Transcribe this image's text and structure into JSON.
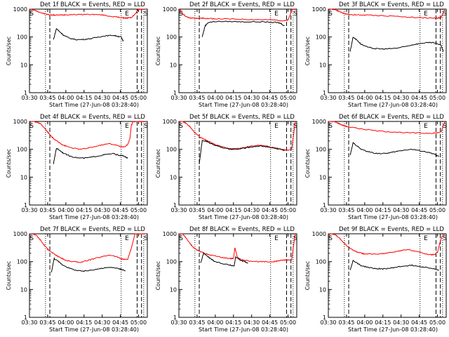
{
  "figure": {
    "xlabel": "Start Time (27-Jun-08 03:28:40)",
    "ylabel": "Counts/sec",
    "x_tick_labels": [
      "03:30",
      "03:45",
      "04:00",
      "04:15",
      "04:30",
      "04:45",
      "05:00"
    ],
    "y_tick_labels": [
      "1",
      "10",
      "100",
      "1000"
    ]
  },
  "colors": {
    "events": "#000000",
    "lld": "#ff0000",
    "axes": "#000000"
  },
  "chart_data": [
    {
      "type": "line",
      "title": "Det 1f BLACK = Events, RED = LLD",
      "xlabel": "Start Time (27-Jun-08 03:28:40)",
      "ylabel": "Counts/sec",
      "xlim": [
        3.5,
        5.12
      ],
      "ylim": [
        1,
        1000
      ],
      "yscale": "log",
      "markers": [
        "S",
        "E",
        "S"
      ],
      "series": [
        {
          "name": "LLD",
          "color": "#ff0000",
          "x": [
            3.5,
            3.52,
            3.55,
            3.6,
            3.65,
            3.7,
            3.75,
            3.8,
            3.85,
            3.9,
            3.95,
            4.0,
            4.1,
            4.2,
            4.3,
            4.4,
            4.5,
            4.6,
            4.7,
            4.75,
            4.8,
            4.85,
            4.9,
            4.95,
            5.0,
            5.03,
            5.06,
            5.1
          ],
          "values": [
            1000,
            1000,
            950,
            850,
            760,
            690,
            640,
            620,
            610,
            610,
            620,
            630,
            640,
            640,
            650,
            640,
            620,
            560,
            520,
            500,
            480,
            480,
            500,
            650,
            1000,
            1000,
            1000,
            1000
          ]
        },
        {
          "name": "Events",
          "color": "#000000",
          "x": [
            3.83,
            3.87,
            3.92,
            3.97,
            4.05,
            4.15,
            4.25,
            4.35,
            4.45,
            4.55,
            4.65,
            4.72,
            4.76,
            4.79
          ],
          "values": [
            80,
            200,
            150,
            115,
            90,
            80,
            82,
            88,
            100,
            110,
            115,
            105,
            100,
            70
          ]
        }
      ]
    },
    {
      "type": "line",
      "title": "Det 2f BLACK = Events, RED = LLD",
      "xlabel": "Start Time (27-Jun-08 03:28:40)",
      "ylabel": "Counts/sec",
      "xlim": [
        3.5,
        5.12
      ],
      "ylim": [
        1,
        1000
      ],
      "yscale": "log",
      "markers": [
        "S",
        "E",
        "S"
      ],
      "series": [
        {
          "name": "LLD",
          "color": "#ff0000",
          "x": [
            3.5,
            3.52,
            3.55,
            3.6,
            3.65,
            3.7,
            3.75,
            3.8,
            3.85,
            3.9,
            4.0,
            4.2,
            4.4,
            4.6,
            4.8,
            4.9,
            4.95,
            5.0,
            5.03,
            5.06,
            5.1
          ],
          "values": [
            1000,
            950,
            700,
            530,
            480,
            470,
            470,
            470,
            470,
            460,
            450,
            440,
            430,
            420,
            410,
            390,
            380,
            400,
            650,
            1000,
            1000
          ]
        },
        {
          "name": "Events",
          "color": "#000000",
          "x": [
            3.82,
            3.86,
            3.9,
            4.0,
            4.2,
            4.4,
            4.6,
            4.75,
            4.85,
            4.9,
            4.95
          ],
          "values": [
            100,
            250,
            330,
            360,
            360,
            350,
            350,
            340,
            330,
            310,
            250
          ]
        }
      ]
    },
    {
      "type": "line",
      "title": "Det 3f BLACK = Events, RED = LLD",
      "xlabel": "Start Time (27-Jun-08 03:28:40)",
      "ylabel": "Counts/sec",
      "xlim": [
        3.5,
        5.12
      ],
      "ylim": [
        1,
        1000
      ],
      "yscale": "log",
      "markers": [
        "S",
        "E",
        "S"
      ],
      "series": [
        {
          "name": "LLD",
          "color": "#ff0000",
          "x": [
            3.5,
            3.55,
            3.6,
            3.65,
            3.7,
            3.75,
            3.8,
            3.9,
            4.0,
            4.2,
            4.4,
            4.6,
            4.8,
            4.95,
            5.0,
            5.05,
            5.1
          ],
          "values": [
            1000,
            1000,
            950,
            830,
            720,
            660,
            640,
            620,
            610,
            590,
            560,
            520,
            490,
            470,
            480,
            500,
            1000
          ]
        },
        {
          "name": "Events",
          "color": "#000000",
          "x": [
            3.8,
            3.84,
            3.9,
            3.95,
            4.05,
            4.15,
            4.25,
            4.35,
            4.45,
            4.55,
            4.65,
            4.75,
            4.85,
            4.95,
            5.05,
            5.08
          ],
          "values": [
            30,
            100,
            75,
            55,
            42,
            38,
            37,
            38,
            40,
            45,
            52,
            58,
            62,
            62,
            50,
            30
          ]
        }
      ]
    },
    {
      "type": "line",
      "title": "Det 4f BLACK = Events, RED = LLD",
      "xlabel": "Start Time (27-Jun-08 03:28:40)",
      "ylabel": "Counts/sec",
      "xlim": [
        3.5,
        5.12
      ],
      "ylim": [
        1,
        1000
      ],
      "yscale": "log",
      "markers": [
        "S",
        "E",
        "S"
      ],
      "series": [
        {
          "name": "LLD",
          "color": "#ff0000",
          "x": [
            3.5,
            3.55,
            3.6,
            3.65,
            3.7,
            3.75,
            3.8,
            3.85,
            3.9,
            3.95,
            4.0,
            4.1,
            4.2,
            4.3,
            4.4,
            4.5,
            4.6,
            4.7,
            4.75,
            4.8,
            4.85,
            4.88,
            4.9,
            4.92,
            4.95,
            5.0,
            5.05,
            5.1
          ],
          "values": [
            1000,
            1000,
            950,
            820,
            600,
            420,
            290,
            220,
            180,
            150,
            130,
            110,
            100,
            110,
            125,
            145,
            160,
            140,
            125,
            120,
            150,
            240,
            700,
            1000,
            1000,
            1000,
            1000,
            1000
          ]
        },
        {
          "name": "Events",
          "color": "#000000",
          "x": [
            3.83,
            3.87,
            3.92,
            3.97,
            4.05,
            4.15,
            4.25,
            4.35,
            4.45,
            4.55,
            4.65,
            4.72,
            4.79,
            4.85
          ],
          "values": [
            30,
            110,
            90,
            72,
            58,
            50,
            48,
            52,
            58,
            65,
            70,
            62,
            58,
            48
          ]
        }
      ]
    },
    {
      "type": "line",
      "title": "Det 5f BLACK = Events, RED = LLD",
      "xlabel": "Start Time (27-Jun-08 03:28:40)",
      "ylabel": "Counts/sec",
      "xlim": [
        3.5,
        5.12
      ],
      "ylim": [
        1,
        1000
      ],
      "yscale": "log",
      "markers": [
        "S",
        "E",
        "S"
      ],
      "series": [
        {
          "name": "LLD",
          "color": "#ff0000",
          "x": [
            3.5,
            3.55,
            3.6,
            3.65,
            3.7,
            3.75,
            3.8,
            3.85,
            3.9,
            3.95,
            4.0,
            4.1,
            4.2,
            4.3,
            4.4,
            4.5,
            4.6,
            4.7,
            4.75,
            4.8,
            4.85,
            4.9,
            4.95,
            5.0,
            5.05,
            5.1
          ],
          "values": [
            1000,
            1000,
            850,
            650,
            450,
            330,
            260,
            230,
            200,
            170,
            150,
            120,
            105,
            105,
            115,
            130,
            140,
            130,
            120,
            115,
            108,
            100,
            95,
            95,
            100,
            1000
          ]
        },
        {
          "name": "Events",
          "color": "#000000",
          "x": [
            3.78,
            3.82,
            3.87,
            3.92,
            4.0,
            4.1,
            4.2,
            4.3,
            4.4,
            4.5,
            4.6,
            4.7,
            4.8,
            4.9,
            4.95
          ],
          "values": [
            30,
            200,
            200,
            170,
            140,
            115,
            100,
            100,
            110,
            122,
            132,
            125,
            112,
            100,
            92
          ]
        }
      ]
    },
    {
      "type": "line",
      "title": "Det 6f BLACK = Events, RED = LLD",
      "xlabel": "Start Time (27-Jun-08 03:28:40)",
      "ylabel": "Counts/sec",
      "xlim": [
        3.5,
        5.12
      ],
      "ylim": [
        1,
        1000
      ],
      "yscale": "log",
      "markers": [
        "S",
        "E",
        "S"
      ],
      "series": [
        {
          "name": "LLD",
          "color": "#ff0000",
          "x": [
            3.5,
            3.55,
            3.6,
            3.65,
            3.7,
            3.75,
            3.8,
            3.9,
            4.0,
            4.2,
            4.4,
            4.6,
            4.8,
            4.95,
            5.0,
            5.05,
            5.1
          ],
          "values": [
            1000,
            1000,
            950,
            830,
            730,
            660,
            620,
            570,
            520,
            450,
            420,
            390,
            380,
            380,
            390,
            420,
            1000
          ]
        },
        {
          "name": "Events",
          "color": "#000000",
          "x": [
            3.8,
            3.84,
            3.9,
            3.95,
            4.05,
            4.15,
            4.25,
            4.35,
            4.45,
            4.55,
            4.65,
            4.75,
            4.85,
            4.95,
            5.02
          ],
          "values": [
            60,
            170,
            130,
            100,
            82,
            72,
            70,
            75,
            85,
            95,
            100,
            90,
            80,
            68,
            55
          ]
        }
      ]
    },
    {
      "type": "line",
      "title": "Det 7f BLACK = Events, RED = LLD",
      "xlabel": "Start Time (27-Jun-08 03:28:40)",
      "ylabel": "Counts/sec",
      "xlim": [
        3.5,
        5.12
      ],
      "ylim": [
        1,
        1000
      ],
      "yscale": "log",
      "markers": [
        "S",
        "E",
        "S"
      ],
      "series": [
        {
          "name": "LLD",
          "color": "#ff0000",
          "x": [
            3.5,
            3.55,
            3.6,
            3.65,
            3.7,
            3.75,
            3.8,
            3.85,
            3.9,
            3.95,
            4.0,
            4.1,
            4.2,
            4.3,
            4.4,
            4.5,
            4.6,
            4.7,
            4.75,
            4.8,
            4.85,
            4.9,
            4.95,
            5.0,
            5.05,
            5.1
          ],
          "values": [
            1000,
            1000,
            850,
            600,
            400,
            280,
            220,
            180,
            150,
            130,
            110,
            100,
            95,
            110,
            130,
            150,
            175,
            150,
            130,
            120,
            120,
            300,
            1000,
            1000,
            1000,
            1000
          ]
        },
        {
          "name": "Events",
          "color": "#000000",
          "x": [
            3.8,
            3.84,
            3.9,
            3.95,
            4.05,
            4.15,
            4.25,
            4.35,
            4.45,
            4.55,
            4.65,
            4.72,
            4.78,
            4.82
          ],
          "values": [
            40,
            130,
            100,
            78,
            58,
            48,
            45,
            50,
            55,
            60,
            62,
            56,
            52,
            46
          ]
        }
      ]
    },
    {
      "type": "line",
      "title": "Det 8f BLACK = Events, RED = LLD",
      "xlabel": "Start Time (27-Jun-08 03:28:40)",
      "ylabel": "Counts/sec",
      "xlim": [
        3.5,
        5.12
      ],
      "ylim": [
        1,
        1000
      ],
      "yscale": "log",
      "markers": [
        "S",
        "E",
        "S"
      ],
      "series": [
        {
          "name": "LLD",
          "color": "#ff0000",
          "x": [
            3.5,
            3.55,
            3.6,
            3.65,
            3.7,
            3.75,
            3.8,
            3.85,
            3.9,
            4.0,
            4.1,
            4.2,
            4.25,
            4.27,
            4.3,
            4.35,
            4.4,
            4.5,
            4.6,
            4.7,
            4.8,
            4.85,
            4.9,
            4.95,
            5.0,
            5.05,
            5.1
          ],
          "values": [
            1000,
            1000,
            700,
            450,
            320,
            260,
            230,
            200,
            180,
            160,
            140,
            130,
            130,
            320,
            150,
            120,
            110,
            105,
            100,
            98,
            100,
            105,
            110,
            115,
            115,
            120,
            1000
          ]
        },
        {
          "name": "Events",
          "color": "#000000",
          "x": [
            3.8,
            3.84,
            3.9,
            3.95,
            4.0,
            4.1,
            4.2,
            4.26,
            4.28,
            4.35,
            4.4,
            4.45
          ],
          "values": [
            90,
            200,
            150,
            120,
            100,
            85,
            75,
            70,
            150,
            110,
            100,
            90
          ]
        }
      ]
    },
    {
      "type": "line",
      "title": "Det 9f BLACK = Events, RED = LLD",
      "xlabel": "Start Time (27-Jun-08 03:28:40)",
      "ylabel": "Counts/sec",
      "xlim": [
        3.5,
        5.12
      ],
      "ylim": [
        1,
        1000
      ],
      "yscale": "log",
      "markers": [
        "S",
        "E",
        "S"
      ],
      "series": [
        {
          "name": "LLD",
          "color": "#ff0000",
          "x": [
            3.5,
            3.55,
            3.6,
            3.65,
            3.7,
            3.75,
            3.8,
            3.85,
            3.9,
            3.95,
            4.0,
            4.1,
            4.2,
            4.3,
            4.4,
            4.5,
            4.6,
            4.7,
            4.8,
            4.9,
            4.95,
            5.0,
            5.05,
            5.1
          ],
          "values": [
            1000,
            1000,
            900,
            700,
            520,
            380,
            300,
            250,
            220,
            200,
            190,
            185,
            190,
            200,
            220,
            250,
            270,
            240,
            200,
            180,
            175,
            220,
            700,
            1000
          ]
        },
        {
          "name": "Events",
          "color": "#000000",
          "x": [
            3.8,
            3.84,
            3.9,
            3.95,
            4.05,
            4.15,
            4.25,
            4.35,
            4.45,
            4.55,
            4.65,
            4.75,
            4.85,
            4.95,
            5.02
          ],
          "values": [
            50,
            110,
            88,
            72,
            62,
            56,
            55,
            58,
            64,
            70,
            74,
            68,
            62,
            55,
            48
          ]
        }
      ]
    }
  ]
}
